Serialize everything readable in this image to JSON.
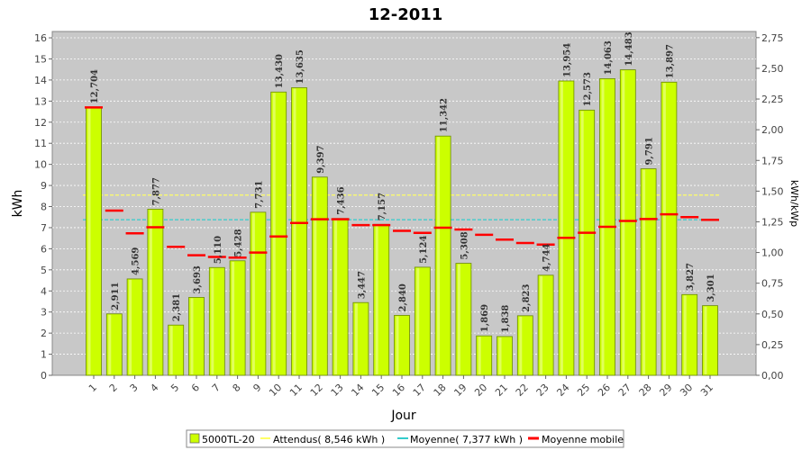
{
  "chart_data": {
    "type": "bar",
    "title": "12-2011",
    "xlabel": "Jour",
    "ylabel": "kWh",
    "y2label": "kWh/kWp",
    "ylim": [
      0,
      16.3
    ],
    "y_ticks": [
      0,
      1,
      2,
      3,
      4,
      5,
      6,
      7,
      8,
      9,
      10,
      11,
      12,
      13,
      14,
      15,
      16
    ],
    "y2lim": [
      0,
      2.8
    ],
    "y2_ticks": [
      "0,00",
      "0,25",
      "0,50",
      "0,75",
      "1,00",
      "1,25",
      "1,50",
      "1,75",
      "2,00",
      "2,25",
      "2,50",
      "2,75"
    ],
    "grid": true,
    "legend_position": "bottom",
    "categories": [
      "1",
      "2",
      "3",
      "4",
      "5",
      "6",
      "7",
      "8",
      "9",
      "10",
      "11",
      "12",
      "13",
      "14",
      "15",
      "16",
      "17",
      "18",
      "19",
      "20",
      "21",
      "22",
      "23",
      "24",
      "25",
      "26",
      "27",
      "28",
      "29",
      "30",
      "31"
    ],
    "series": [
      {
        "name": "5000TL-20",
        "type": "bar",
        "color": "#ccff00",
        "values": [
          12.704,
          2.911,
          4.569,
          7.877,
          2.381,
          3.693,
          5.11,
          5.428,
          7.731,
          13.43,
          13.635,
          9.397,
          7.436,
          3.447,
          7.157,
          2.84,
          5.124,
          11.342,
          5.308,
          1.869,
          1.838,
          2.823,
          4.744,
          13.954,
          12.573,
          14.063,
          14.483,
          9.791,
          13.897,
          3.827,
          3.301
        ],
        "labels": [
          "12,704",
          "2,911",
          "4,569",
          "7,877",
          "2,381",
          "3,693",
          "5,110",
          "5,428",
          "7,731",
          "13,430",
          "13,635",
          "9,397",
          "7,436",
          "3,447",
          "7,157",
          "2,840",
          "5,124",
          "11,342",
          "5,308",
          "1,869",
          "1,838",
          "2,823",
          "4,744",
          "13,954",
          "12,573",
          "14,063",
          "14,483",
          "9,791",
          "13,897",
          "3,827",
          "3,301"
        ]
      },
      {
        "name": "Attendus( 8,546 kWh )",
        "type": "hline",
        "color": "#ffff66",
        "value": 8.546
      },
      {
        "name": "Moyenne( 7,377 kWh )",
        "type": "hline",
        "color": "#33cccc",
        "value": 7.377
      },
      {
        "name": "Moyenne mobile",
        "type": "step",
        "color": "#ff0000",
        "values": [
          12.7,
          7.81,
          6.73,
          7.02,
          6.09,
          5.69,
          5.61,
          5.58,
          5.82,
          6.58,
          7.22,
          7.4,
          7.4,
          7.12,
          7.12,
          6.85,
          6.75,
          7.0,
          6.91,
          6.66,
          6.43,
          6.27,
          6.2,
          6.52,
          6.76,
          7.04,
          7.32,
          7.41,
          7.63,
          7.5,
          7.37
        ]
      }
    ]
  }
}
